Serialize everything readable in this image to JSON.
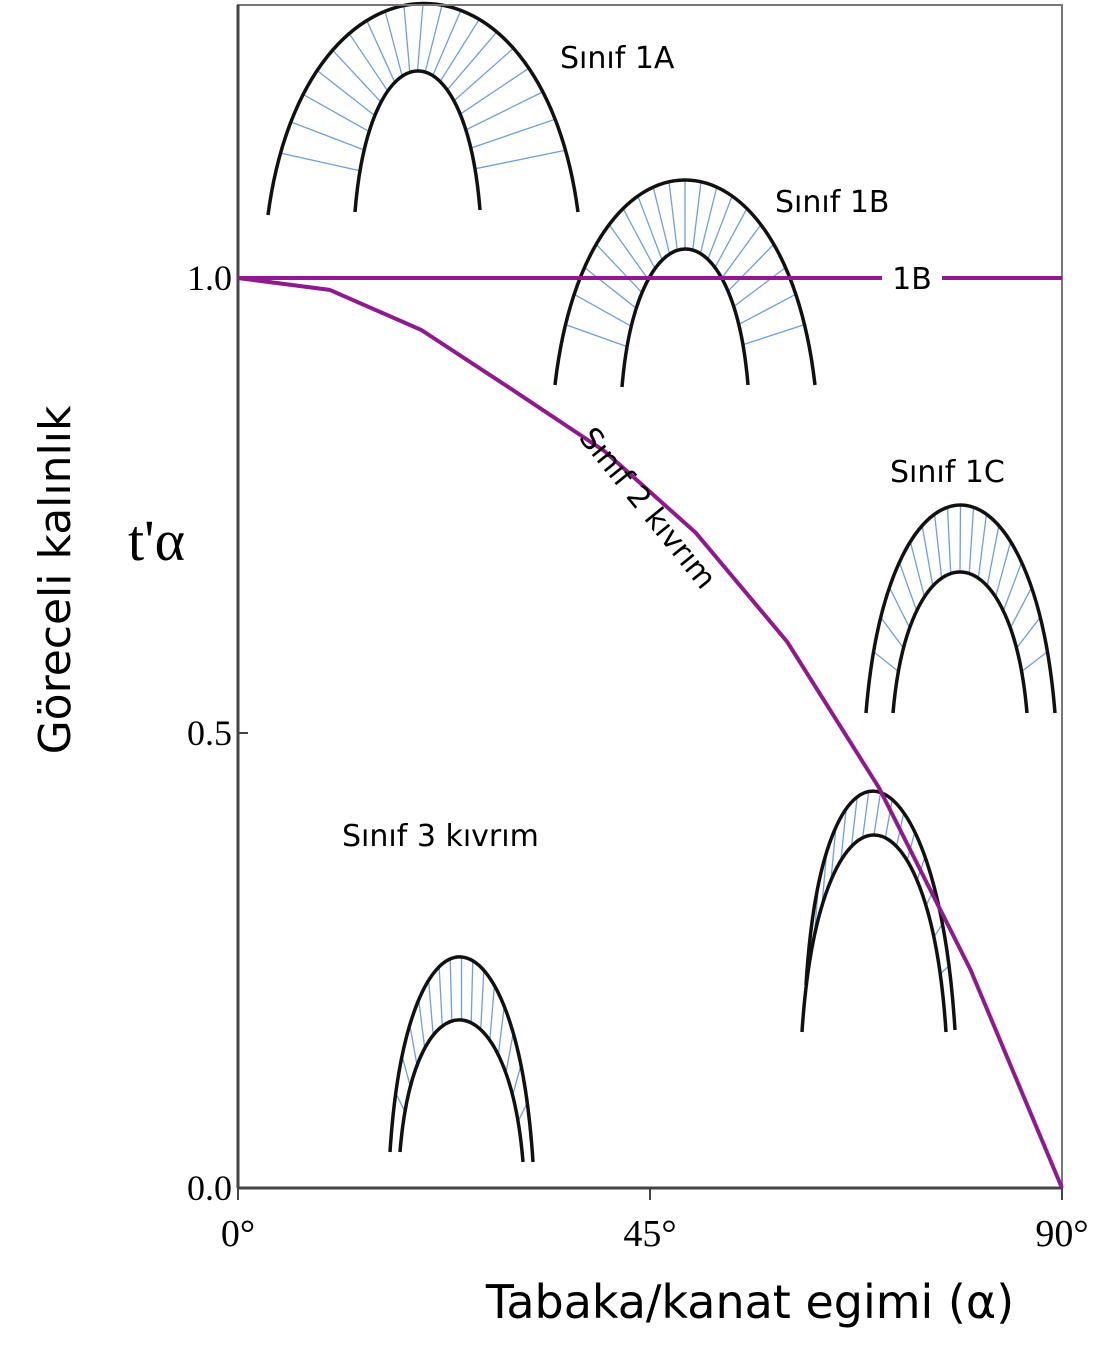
{
  "chart_data": {
    "type": "line",
    "x_label": "Tabaka/kanat egimi (α)",
    "y_label": "Göreceli kalınlık",
    "y_symbol": "t'α",
    "x": [
      0,
      10,
      20,
      30,
      40,
      50,
      60,
      70,
      80,
      90
    ],
    "series": [
      {
        "name": "1B",
        "color": "#8e1a8e",
        "values": [
          1,
          1,
          1,
          1,
          1,
          1,
          1,
          1,
          1,
          1
        ]
      },
      {
        "name": "Sınıf 2 kıvrım",
        "color": "#8e1a8e",
        "values": [
          1,
          0.987,
          0.943,
          0.877,
          0.81,
          0.72,
          0.6,
          0.44,
          0.24,
          0
        ]
      }
    ],
    "xlim": [
      0,
      90
    ],
    "xticks": [
      {
        "value": 0,
        "label": "0°"
      },
      {
        "value": 45,
        "label": "45°"
      },
      {
        "value": 90,
        "label": "90°"
      }
    ],
    "ylim": [
      0,
      1.3
    ],
    "yticks": [
      {
        "value": 0,
        "label": "0.0"
      },
      {
        "value": 0.5,
        "label": "0.5"
      },
      {
        "value": 1,
        "label": "1.0"
      }
    ],
    "annotations": [
      "Sınıf 1A",
      "Sınıf 1B",
      "Sınıf 1C",
      "Sınıf 3 kıvrım"
    ]
  }
}
